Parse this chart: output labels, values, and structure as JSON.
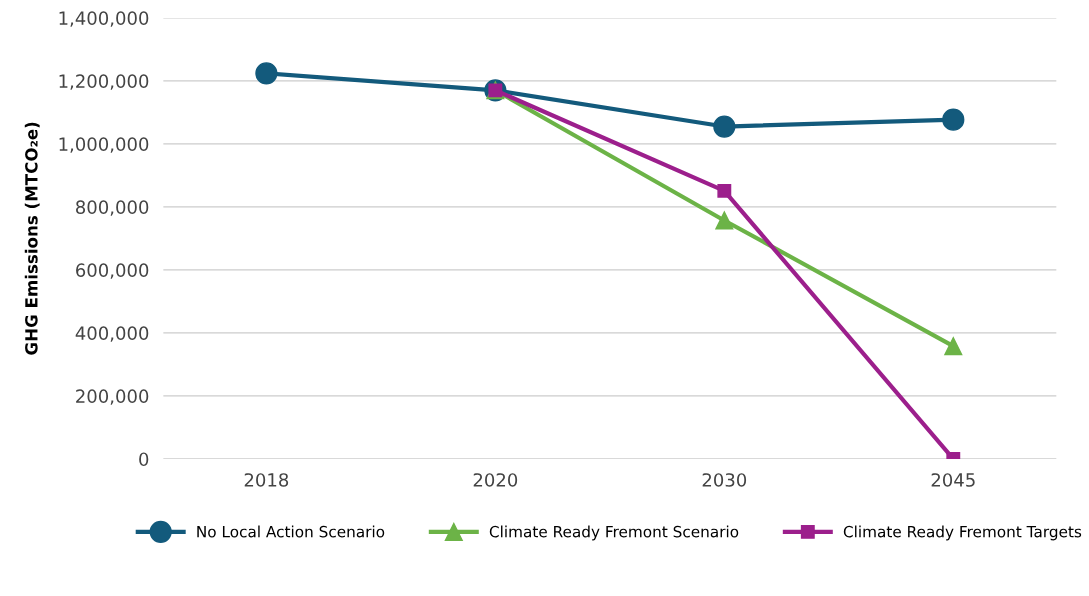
{
  "chart_data": {
    "type": "line",
    "ylabel": "GHG Emissions (MTCO₂e)",
    "categories": [
      "2018",
      "2020",
      "2030",
      "2045"
    ],
    "series": [
      {
        "name": "No Local Action Scenario",
        "color": "#135a7c",
        "marker": "circle",
        "values": [
          1224000,
          1170000,
          1055000,
          1077000
        ]
      },
      {
        "name": "Climate Ready Fremont Scenario",
        "color": "#6cb347",
        "marker": "triangle",
        "values": [
          null,
          1170000,
          757000,
          358000
        ]
      },
      {
        "name": "Climate Ready Fremont Targets",
        "color": "#9c1f8c",
        "marker": "square",
        "values": [
          null,
          1170000,
          851000,
          0
        ]
      }
    ],
    "ylim": [
      0,
      1400000
    ],
    "yticks": [
      {
        "value": 0,
        "label": "0"
      },
      {
        "value": 200000,
        "label": "200,000"
      },
      {
        "value": 400000,
        "label": "400,000"
      },
      {
        "value": 600000,
        "label": "600,000"
      },
      {
        "value": 800000,
        "label": "800,000"
      },
      {
        "value": 1000000,
        "label": "1,000,000"
      },
      {
        "value": 1200000,
        "label": "1,200,000"
      },
      {
        "value": 1400000,
        "label": "1,400,000"
      }
    ],
    "grid": "y",
    "legend": "bottom",
    "line_style": "solid"
  }
}
